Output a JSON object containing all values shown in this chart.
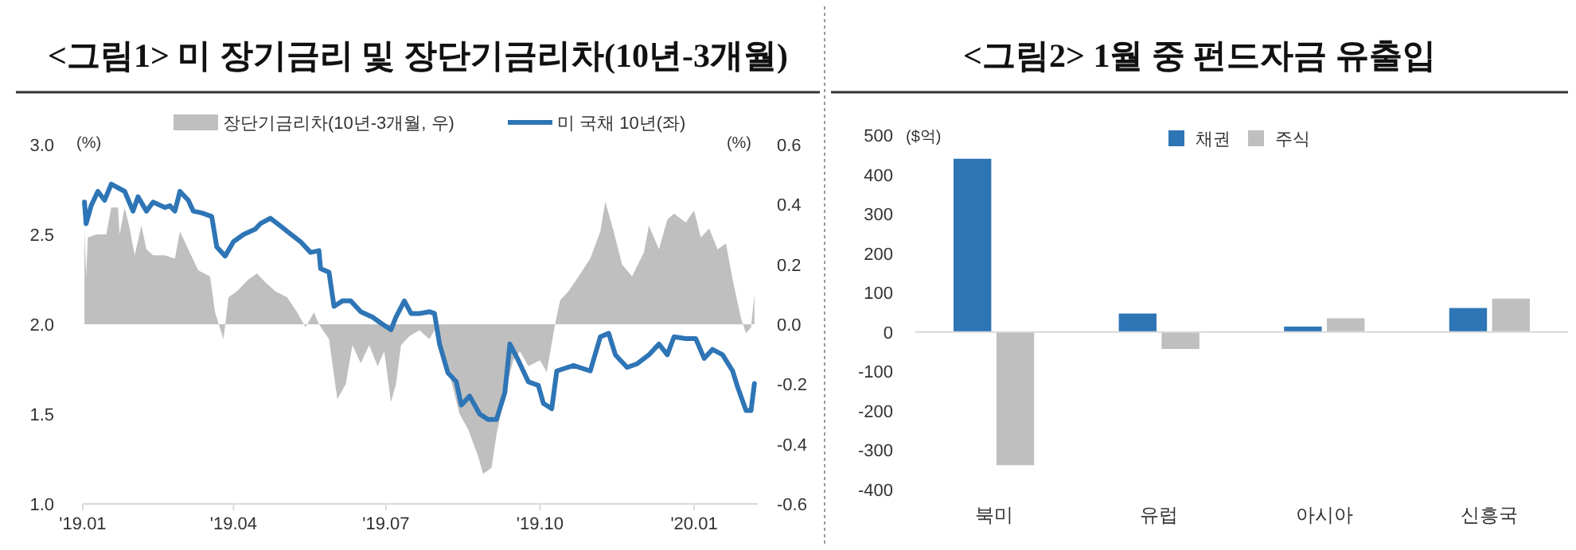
{
  "chart_data": [
    {
      "type": "line",
      "title": "<그림1> 미 장기금리 및 장단기금리차(10년-3개월)",
      "ylabel": "(%)",
      "y2label": "(%)",
      "legend": "top",
      "xlim": [
        "2019-01-01",
        "2020-02-08"
      ],
      "xticks": [
        {
          "value": "2019-01-01",
          "label": "'19.01"
        },
        {
          "value": "2019-04-01",
          "label": "'19.04"
        },
        {
          "value": "2019-07-01",
          "label": "'19.07"
        },
        {
          "value": "2019-10-01",
          "label": "'19.10"
        },
        {
          "value": "2020-01-01",
          "label": "'20.01"
        }
      ],
      "ylim": [
        1.0,
        3.0
      ],
      "yticks": [
        {
          "value": 1.0,
          "label": "1.0"
        },
        1.5,
        {
          "value": 2.0,
          "label": "2.0"
        },
        2.5,
        {
          "value": 3.0,
          "label": "3.0"
        }
      ],
      "y2lim": [
        -0.6,
        0.6
      ],
      "y2ticks": [
        -0.6,
        -0.4,
        -0.2,
        {
          "value": 0,
          "label": "0.0"
        },
        0.2,
        0.4,
        0.6
      ],
      "series": [
        {
          "name": "장단기금리차(10년-3개월, 우)",
          "type": "area",
          "axis": "y2",
          "color": "#bfbfbf",
          "x": [
            "2019-01-02",
            "2019-01-03",
            "2019-01-04",
            "2019-01-09",
            "2019-01-15",
            "2019-01-18",
            "2019-01-22",
            "2019-01-23",
            "2019-01-26",
            "2019-01-29",
            "2019-02-01",
            "2019-02-05",
            "2019-02-08",
            "2019-02-12",
            "2019-02-19",
            "2019-02-25",
            "2019-02-28",
            "2019-03-05",
            "2019-03-11",
            "2019-03-18",
            "2019-03-21",
            "2019-03-26",
            "2019-03-29",
            "2019-04-03",
            "2019-04-10",
            "2019-04-15",
            "2019-04-20",
            "2019-04-26",
            "2019-05-03",
            "2019-05-09",
            "2019-05-14",
            "2019-05-19",
            "2019-05-22",
            "2019-05-28",
            "2019-06-02",
            "2019-06-07",
            "2019-06-11",
            "2019-06-16",
            "2019-06-21",
            "2019-06-26",
            "2019-06-30",
            "2019-07-04",
            "2019-07-07",
            "2019-07-10",
            "2019-07-15",
            "2019-07-21",
            "2019-07-27",
            "2019-07-31",
            "2019-08-04",
            "2019-08-09",
            "2019-08-14",
            "2019-08-19",
            "2019-08-25",
            "2019-08-28",
            "2019-09-02",
            "2019-09-05",
            "2019-09-10",
            "2019-09-15",
            "2019-09-19",
            "2019-09-24",
            "2019-10-01",
            "2019-10-05",
            "2019-10-10",
            "2019-10-13",
            "2019-10-18",
            "2019-10-24",
            "2019-10-31",
            "2019-11-06",
            "2019-11-09",
            "2019-11-14",
            "2019-11-19",
            "2019-11-25",
            "2019-12-02",
            "2019-12-05",
            "2019-12-11",
            "2019-12-16",
            "2019-12-20",
            "2019-12-27",
            "2020-01-01",
            "2020-01-05",
            "2020-01-10",
            "2020-01-15",
            "2020-01-20",
            "2020-01-24",
            "2020-01-29",
            "2020-02-01",
            "2020-02-04",
            "2020-02-06"
          ],
          "values": [
            0.32,
            0.16,
            0.29,
            0.3,
            0.3,
            0.39,
            0.39,
            0.3,
            0.39,
            0.32,
            0.23,
            0.33,
            0.25,
            0.23,
            0.23,
            0.22,
            0.31,
            0.25,
            0.18,
            0.16,
            0.04,
            -0.05,
            0.09,
            0.11,
            0.15,
            0.17,
            0.14,
            0.11,
            0.09,
            0.04,
            -0.01,
            0.04,
            0.0,
            -0.05,
            -0.25,
            -0.2,
            -0.07,
            -0.13,
            -0.07,
            -0.14,
            -0.09,
            -0.26,
            -0.2,
            -0.07,
            -0.04,
            -0.02,
            -0.05,
            -0.01,
            -0.1,
            -0.19,
            -0.3,
            -0.35,
            -0.44,
            -0.5,
            -0.48,
            -0.37,
            -0.23,
            -0.12,
            -0.09,
            -0.14,
            -0.12,
            -0.16,
            0.0,
            0.08,
            0.11,
            0.16,
            0.22,
            0.31,
            0.41,
            0.31,
            0.2,
            0.16,
            0.24,
            0.33,
            0.25,
            0.35,
            0.37,
            0.34,
            0.38,
            0.29,
            0.32,
            0.25,
            0.27,
            0.15,
            0.02,
            -0.03,
            -0.01,
            0.1
          ]
        },
        {
          "name": "미 국채 10년(좌)",
          "type": "line",
          "color": "#2e75b6",
          "x": [
            "2019-01-02",
            "2019-01-03",
            "2019-01-06",
            "2019-01-10",
            "2019-01-14",
            "2019-01-18",
            "2019-01-22",
            "2019-01-26",
            "2019-01-31",
            "2019-02-03",
            "2019-02-08",
            "2019-02-12",
            "2019-02-19",
            "2019-02-22",
            "2019-02-25",
            "2019-02-28",
            "2019-03-05",
            "2019-03-08",
            "2019-03-13",
            "2019-03-19",
            "2019-03-22",
            "2019-03-27",
            "2019-04-01",
            "2019-04-07",
            "2019-04-14",
            "2019-04-17",
            "2019-04-23",
            "2019-04-30",
            "2019-05-04",
            "2019-05-11",
            "2019-05-17",
            "2019-05-22",
            "2019-05-23",
            "2019-05-28",
            "2019-05-31",
            "2019-06-05",
            "2019-06-10",
            "2019-06-16",
            "2019-06-23",
            "2019-06-29",
            "2019-07-04",
            "2019-07-07",
            "2019-07-12",
            "2019-07-16",
            "2019-07-21",
            "2019-07-27",
            "2019-07-30",
            "2019-08-02",
            "2019-08-07",
            "2019-08-12",
            "2019-08-15",
            "2019-08-20",
            "2019-08-26",
            "2019-08-31",
            "2019-09-05",
            "2019-09-10",
            "2019-09-13",
            "2019-09-18",
            "2019-09-24",
            "2019-09-30",
            "2019-10-03",
            "2019-10-08",
            "2019-10-11",
            "2019-10-21",
            "2019-10-31",
            "2019-11-06",
            "2019-11-11",
            "2019-11-15",
            "2019-11-22",
            "2019-11-28",
            "2019-12-05",
            "2019-12-11",
            "2019-12-16",
            "2019-12-20",
            "2019-12-27",
            "2020-01-02",
            "2020-01-07",
            "2020-01-12",
            "2020-01-18",
            "2020-01-24",
            "2020-01-27",
            "2020-02-01",
            "2020-02-04",
            "2020-02-06"
          ],
          "values": [
            2.68,
            2.56,
            2.66,
            2.74,
            2.69,
            2.78,
            2.76,
            2.74,
            2.63,
            2.71,
            2.63,
            2.68,
            2.65,
            2.66,
            2.63,
            2.74,
            2.69,
            2.63,
            2.62,
            2.6,
            2.43,
            2.38,
            2.46,
            2.5,
            2.53,
            2.56,
            2.59,
            2.54,
            2.51,
            2.46,
            2.4,
            2.41,
            2.31,
            2.29,
            2.1,
            2.13,
            2.13,
            2.07,
            2.04,
            2.0,
            1.97,
            2.04,
            2.13,
            2.06,
            2.06,
            2.07,
            2.06,
            1.89,
            1.73,
            1.68,
            1.55,
            1.6,
            1.5,
            1.47,
            1.47,
            1.62,
            1.89,
            1.8,
            1.68,
            1.66,
            1.56,
            1.53,
            1.74,
            1.77,
            1.74,
            1.93,
            1.95,
            1.83,
            1.76,
            1.78,
            1.83,
            1.89,
            1.83,
            1.93,
            1.92,
            1.92,
            1.81,
            1.86,
            1.83,
            1.74,
            1.65,
            1.52,
            1.52,
            1.67
          ]
        }
      ]
    },
    {
      "type": "bar",
      "title": "<그림2> 1월 중 펀드자금 유출입",
      "ylabel": "($억)",
      "legend": "top",
      "categories": [
        "북미",
        "유럽",
        "아시아",
        "신흥국"
      ],
      "ylim": [
        -400,
        500
      ],
      "yticks": [
        -400,
        -300,
        -200,
        -100,
        0,
        100,
        200,
        300,
        400,
        500
      ],
      "series": [
        {
          "name": "채권",
          "color": "#2e75b6",
          "values": [
            440,
            47,
            14,
            61
          ]
        },
        {
          "name": "주식",
          "color": "#bfbfbf",
          "values": [
            -338,
            -43,
            35,
            85
          ]
        }
      ]
    }
  ]
}
